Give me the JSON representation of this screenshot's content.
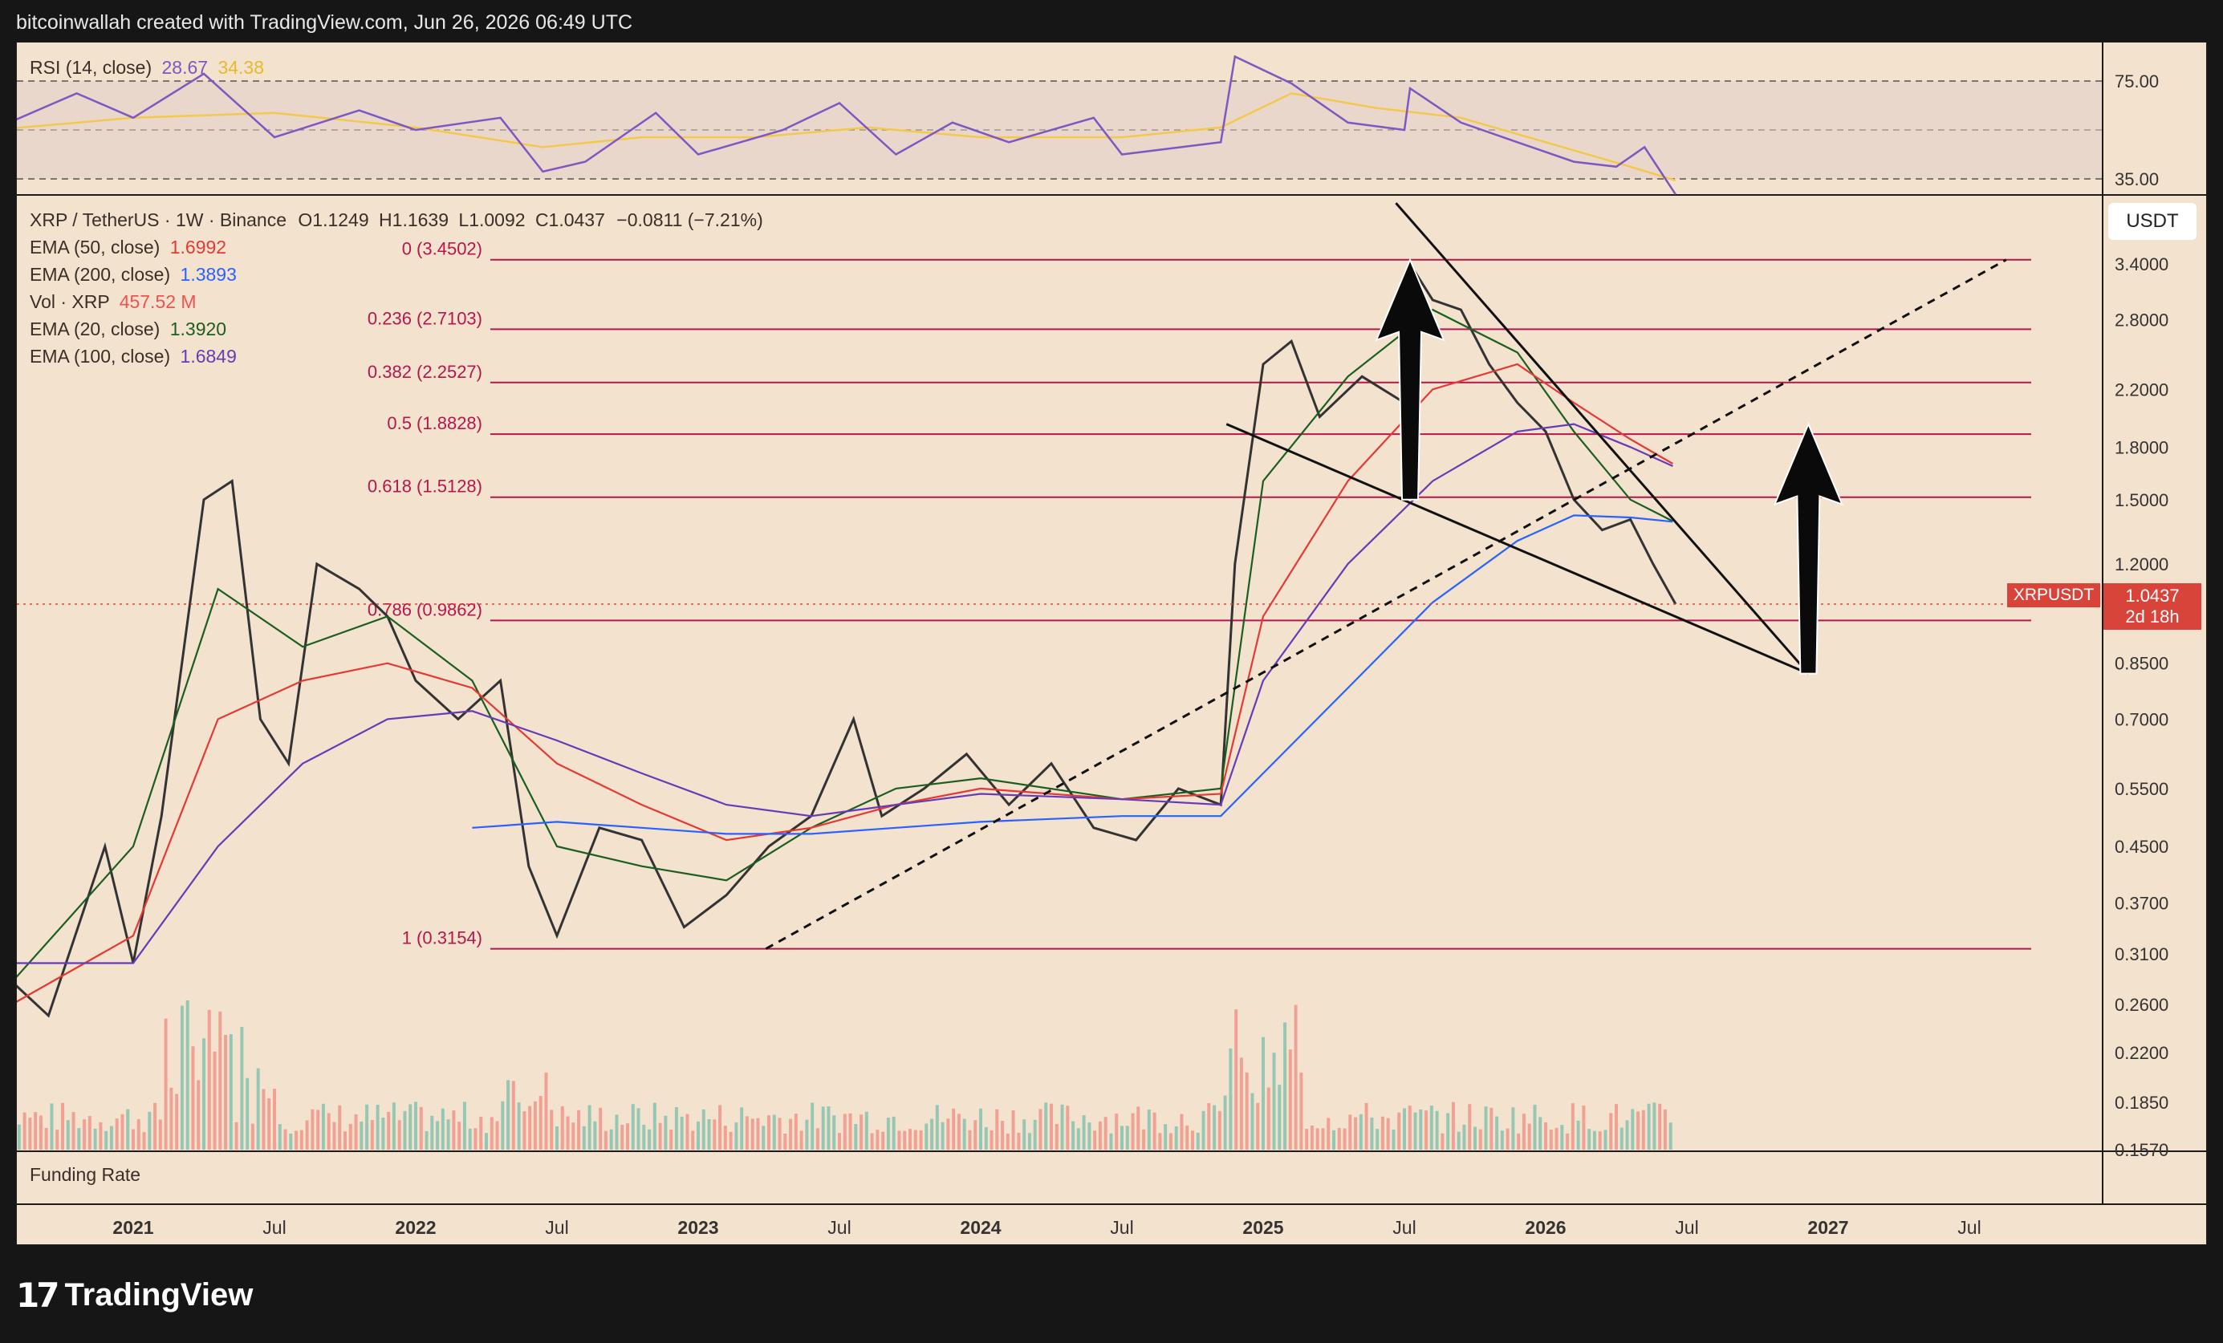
{
  "header": {
    "credit": "bitcoinwallah created with TradingView.com, Jun 26, 2026 06:49 UTC"
  },
  "rsi_panel": {
    "label": "RSI (14, close)",
    "rsi_value": "28.67",
    "ma_value": "34.38",
    "levels": [
      "75.00",
      "35.00"
    ],
    "colors": {
      "rsi": "#7e57c2",
      "ma": "#f2c94c"
    }
  },
  "price_panel": {
    "symbol_line": "XRP / TetherUS · 1W · Binance",
    "ohlc": {
      "o": "O1.1249",
      "h": "H1.1639",
      "l": "L1.0092",
      "c": "C1.0437",
      "chg": "−0.0811 (−7.21%)"
    },
    "indicators": [
      {
        "label": "EMA (50, close)",
        "value": "1.6992",
        "color": "#e53935"
      },
      {
        "label": "EMA (200, close)",
        "value": "1.3893",
        "color": "#2962ff"
      },
      {
        "label": "Vol · XRP",
        "value": "457.52 M",
        "color": "#ef5350"
      },
      {
        "label": "EMA (20, close)",
        "value": "1.3920",
        "color": "#1b5e20"
      },
      {
        "label": "EMA (100, close)",
        "value": "1.6849",
        "color": "#673ab7"
      }
    ],
    "currency_button": "USDT",
    "last_price_tag": {
      "symbol": "XRPUSDT",
      "price": "1.0437",
      "countdown": "2d 18h",
      "color": "#d9443a"
    }
  },
  "fib_levels": [
    {
      "label": "0 (3.4502)",
      "price": 3.4502
    },
    {
      "label": "0.236 (2.7103)",
      "price": 2.7103
    },
    {
      "label": "0.382 (2.2527)",
      "price": 2.2527
    },
    {
      "label": "0.5 (1.8828)",
      "price": 1.8828
    },
    {
      "label": "0.618 (1.5128)",
      "price": 1.5128
    },
    {
      "label": "0.786 (0.9862)",
      "price": 0.9862
    },
    {
      "label": "1 (0.3154)",
      "price": 0.3154
    }
  ],
  "funding_label": "Funding Rate",
  "brand": {
    "logo": "17",
    "name": "TradingView"
  },
  "chart_data": {
    "type": "line",
    "title": "XRP / TetherUS · 1W · Binance",
    "y_scale": "log",
    "y_ticks": [
      "3.4000",
      "2.8000",
      "2.2000",
      "1.8000",
      "1.5000",
      "1.2000",
      "0.8500",
      "0.7000",
      "0.5500",
      "0.4500",
      "0.3700",
      "0.3100",
      "0.2600",
      "0.2200",
      "0.1850",
      "0.1570"
    ],
    "y_tick_values": [
      3.4,
      2.8,
      2.2,
      1.8,
      1.5,
      1.2,
      0.85,
      0.7,
      0.55,
      0.45,
      0.37,
      0.31,
      0.26,
      0.22,
      0.185,
      0.157
    ],
    "x_ticks": [
      {
        "label": "2021",
        "t": 2021.0,
        "bold": true
      },
      {
        "label": "Jul",
        "t": 2021.5
      },
      {
        "label": "2022",
        "t": 2022.0,
        "bold": true
      },
      {
        "label": "Jul",
        "t": 2022.5
      },
      {
        "label": "2023",
        "t": 2023.0,
        "bold": true
      },
      {
        "label": "Jul",
        "t": 2023.5
      },
      {
        "label": "2024",
        "t": 2024.0,
        "bold": true
      },
      {
        "label": "Jul",
        "t": 2024.5
      },
      {
        "label": "2025",
        "t": 2025.0,
        "bold": true
      },
      {
        "label": "Jul",
        "t": 2025.5
      },
      {
        "label": "2026",
        "t": 2026.0,
        "bold": true
      },
      {
        "label": "Jul",
        "t": 2026.5
      },
      {
        "label": "2027",
        "t": 2027.0,
        "bold": true
      },
      {
        "label": "Jul",
        "t": 2027.5
      }
    ],
    "series": [
      {
        "name": "XRP / TetherUS",
        "color": "#333333",
        "points": [
          [
            2020.5,
            0.3
          ],
          [
            2020.7,
            0.25
          ],
          [
            2020.9,
            0.45
          ],
          [
            2021.0,
            0.3
          ],
          [
            2021.1,
            0.5
          ],
          [
            2021.25,
            1.5
          ],
          [
            2021.35,
            1.6
          ],
          [
            2021.45,
            0.7
          ],
          [
            2021.55,
            0.6
          ],
          [
            2021.65,
            1.2
          ],
          [
            2021.8,
            1.1
          ],
          [
            2021.9,
            1.0
          ],
          [
            2022.0,
            0.8
          ],
          [
            2022.15,
            0.7
          ],
          [
            2022.3,
            0.8
          ],
          [
            2022.4,
            0.42
          ],
          [
            2022.5,
            0.33
          ],
          [
            2022.65,
            0.48
          ],
          [
            2022.8,
            0.46
          ],
          [
            2022.95,
            0.34
          ],
          [
            2023.1,
            0.38
          ],
          [
            2023.25,
            0.45
          ],
          [
            2023.4,
            0.5
          ],
          [
            2023.55,
            0.7
          ],
          [
            2023.65,
            0.5
          ],
          [
            2023.8,
            0.55
          ],
          [
            2023.95,
            0.62
          ],
          [
            2024.1,
            0.52
          ],
          [
            2024.25,
            0.6
          ],
          [
            2024.4,
            0.48
          ],
          [
            2024.55,
            0.46
          ],
          [
            2024.7,
            0.55
          ],
          [
            2024.85,
            0.52
          ],
          [
            2024.9,
            1.2
          ],
          [
            2025.0,
            2.4
          ],
          [
            2025.1,
            2.6
          ],
          [
            2025.2,
            2.0
          ],
          [
            2025.35,
            2.3
          ],
          [
            2025.5,
            2.1
          ],
          [
            2025.52,
            3.4
          ],
          [
            2025.6,
            3.0
          ],
          [
            2025.7,
            2.9
          ],
          [
            2025.8,
            2.4
          ],
          [
            2025.9,
            2.1
          ],
          [
            2026.0,
            1.9
          ],
          [
            2026.1,
            1.5
          ],
          [
            2026.2,
            1.35
          ],
          [
            2026.3,
            1.4
          ],
          [
            2026.38,
            1.2
          ],
          [
            2026.46,
            1.0437
          ]
        ]
      },
      {
        "name": "EMA (20, close)",
        "color": "#1b5e20",
        "points": [
          [
            2020.5,
            0.26
          ],
          [
            2021.0,
            0.45
          ],
          [
            2021.3,
            1.1
          ],
          [
            2021.6,
            0.9
          ],
          [
            2021.9,
            1.0
          ],
          [
            2022.2,
            0.8
          ],
          [
            2022.5,
            0.45
          ],
          [
            2022.8,
            0.42
          ],
          [
            2023.1,
            0.4
          ],
          [
            2023.4,
            0.48
          ],
          [
            2023.7,
            0.55
          ],
          [
            2024.0,
            0.57
          ],
          [
            2024.5,
            0.53
          ],
          [
            2024.85,
            0.55
          ],
          [
            2025.0,
            1.6
          ],
          [
            2025.3,
            2.3
          ],
          [
            2025.6,
            2.9
          ],
          [
            2025.9,
            2.5
          ],
          [
            2026.1,
            1.9
          ],
          [
            2026.3,
            1.5
          ],
          [
            2026.45,
            1.392
          ]
        ]
      },
      {
        "name": "EMA (50, close)",
        "color": "#e53935",
        "points": [
          [
            2020.5,
            0.25
          ],
          [
            2021.0,
            0.33
          ],
          [
            2021.3,
            0.7
          ],
          [
            2021.6,
            0.8
          ],
          [
            2021.9,
            0.85
          ],
          [
            2022.2,
            0.78
          ],
          [
            2022.5,
            0.6
          ],
          [
            2022.8,
            0.52
          ],
          [
            2023.1,
            0.46
          ],
          [
            2023.4,
            0.48
          ],
          [
            2023.7,
            0.52
          ],
          [
            2024.0,
            0.55
          ],
          [
            2024.5,
            0.53
          ],
          [
            2024.85,
            0.54
          ],
          [
            2025.0,
            1.0
          ],
          [
            2025.3,
            1.6
          ],
          [
            2025.6,
            2.2
          ],
          [
            2025.9,
            2.4
          ],
          [
            2026.1,
            2.1
          ],
          [
            2026.3,
            1.85
          ],
          [
            2026.45,
            1.6992
          ]
        ]
      },
      {
        "name": "EMA (100, close)",
        "color": "#673ab7",
        "points": [
          [
            2020.5,
            0.3
          ],
          [
            2021.0,
            0.3
          ],
          [
            2021.3,
            0.45
          ],
          [
            2021.6,
            0.6
          ],
          [
            2021.9,
            0.7
          ],
          [
            2022.2,
            0.72
          ],
          [
            2022.5,
            0.65
          ],
          [
            2022.8,
            0.58
          ],
          [
            2023.1,
            0.52
          ],
          [
            2023.4,
            0.5
          ],
          [
            2023.7,
            0.52
          ],
          [
            2024.0,
            0.54
          ],
          [
            2024.5,
            0.53
          ],
          [
            2024.85,
            0.52
          ],
          [
            2025.0,
            0.8
          ],
          [
            2025.3,
            1.2
          ],
          [
            2025.6,
            1.6
          ],
          [
            2025.9,
            1.9
          ],
          [
            2026.1,
            1.95
          ],
          [
            2026.3,
            1.8
          ],
          [
            2026.45,
            1.6849
          ]
        ]
      },
      {
        "name": "EMA (200, close)",
        "color": "#2962ff",
        "points": [
          [
            2022.2,
            0.48
          ],
          [
            2022.5,
            0.49
          ],
          [
            2022.8,
            0.48
          ],
          [
            2023.1,
            0.47
          ],
          [
            2023.4,
            0.47
          ],
          [
            2023.7,
            0.48
          ],
          [
            2024.0,
            0.49
          ],
          [
            2024.5,
            0.5
          ],
          [
            2024.85,
            0.5
          ],
          [
            2025.0,
            0.58
          ],
          [
            2025.3,
            0.78
          ],
          [
            2025.6,
            1.05
          ],
          [
            2025.9,
            1.3
          ],
          [
            2026.1,
            1.42
          ],
          [
            2026.3,
            1.41
          ],
          [
            2026.45,
            1.3893
          ]
        ]
      }
    ],
    "annotations": [
      {
        "kind": "trendline",
        "from": [
          2023.24,
          0.3154
        ],
        "to": [
          2027.63,
          3.45
        ],
        "dashed": true
      },
      {
        "kind": "trendline",
        "from": [
          2024.87,
          1.95
        ],
        "to": [
          2026.93,
          0.82
        ]
      },
      {
        "kind": "trendline",
        "from": [
          2025.47,
          4.2
        ],
        "to": [
          2026.93,
          0.82
        ]
      },
      {
        "kind": "arrow",
        "direction": "up",
        "from": [
          2025.52,
          1.5
        ],
        "to": [
          2025.52,
          3.45
        ]
      },
      {
        "kind": "arrow",
        "direction": "up",
        "from": [
          2026.93,
          0.82
        ],
        "to": [
          2026.93,
          1.95
        ]
      }
    ],
    "rsi": {
      "rsi_points": [
        [
          2020.5,
          55
        ],
        [
          2020.8,
          70
        ],
        [
          2021.0,
          60
        ],
        [
          2021.25,
          78
        ],
        [
          2021.5,
          52
        ],
        [
          2021.8,
          63
        ],
        [
          2022.0,
          55
        ],
        [
          2022.3,
          60
        ],
        [
          2022.45,
          38
        ],
        [
          2022.6,
          42
        ],
        [
          2022.85,
          62
        ],
        [
          2023.0,
          45
        ],
        [
          2023.3,
          55
        ],
        [
          2023.5,
          66
        ],
        [
          2023.7,
          45
        ],
        [
          2023.9,
          58
        ],
        [
          2024.1,
          50
        ],
        [
          2024.4,
          60
        ],
        [
          2024.5,
          45
        ],
        [
          2024.85,
          50
        ],
        [
          2024.9,
          85
        ],
        [
          2025.1,
          74
        ],
        [
          2025.3,
          58
        ],
        [
          2025.5,
          55
        ],
        [
          2025.52,
          72
        ],
        [
          2025.7,
          58
        ],
        [
          2025.9,
          50
        ],
        [
          2026.1,
          42
        ],
        [
          2026.25,
          40
        ],
        [
          2026.35,
          48
        ],
        [
          2026.46,
          28.67
        ]
      ],
      "ma_points": [
        [
          2020.5,
          55
        ],
        [
          2021.0,
          60
        ],
        [
          2021.5,
          62
        ],
        [
          2022.0,
          56
        ],
        [
          2022.45,
          48
        ],
        [
          2022.8,
          52
        ],
        [
          2023.2,
          52
        ],
        [
          2023.6,
          56
        ],
        [
          2024.0,
          52
        ],
        [
          2024.5,
          52
        ],
        [
          2024.85,
          56
        ],
        [
          2025.1,
          70
        ],
        [
          2025.4,
          64
        ],
        [
          2025.7,
          60
        ],
        [
          2026.0,
          50
        ],
        [
          2026.3,
          40
        ],
        [
          2026.46,
          34.38
        ]
      ]
    },
    "volume_series": "weekly volume bars, peaks near 2021.25 and 2024.9"
  }
}
